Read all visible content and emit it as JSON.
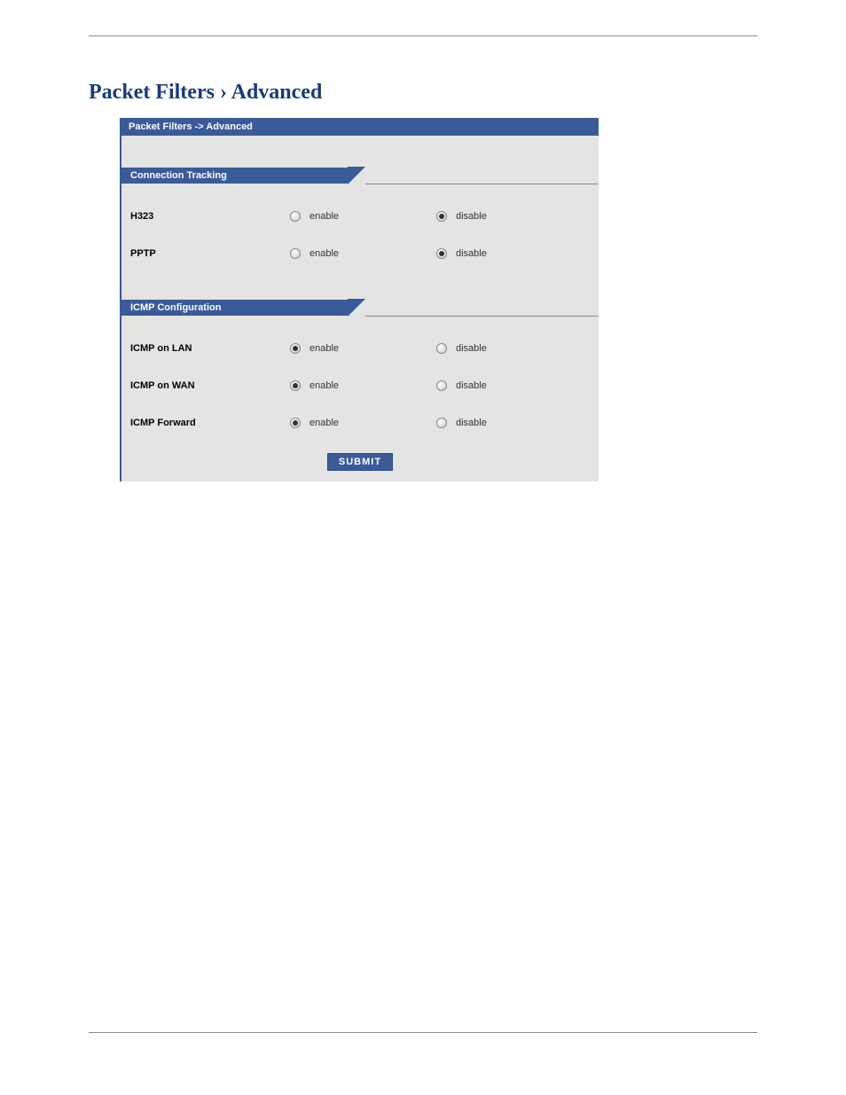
{
  "colors": {
    "primary": "#3a5a9a",
    "title": "#1a3a7a",
    "panel_bg": "#e4e4e4",
    "text": "#000000",
    "radio_label": "#333333",
    "rule": "#888888",
    "white": "#ffffff"
  },
  "page": {
    "title": "Packet Filters › Advanced"
  },
  "panel": {
    "breadcrumb": "Packet Filters  ->  Advanced",
    "sections": [
      {
        "header": "Connection Tracking",
        "rows": [
          {
            "label": "H323",
            "enable_label": "enable",
            "disable_label": "disable",
            "selected": "disable"
          },
          {
            "label": "PPTP",
            "enable_label": "enable",
            "disable_label": "disable",
            "selected": "disable"
          }
        ]
      },
      {
        "header": "ICMP Configuration",
        "rows": [
          {
            "label": "ICMP on LAN",
            "enable_label": "enable",
            "disable_label": "disable",
            "selected": "enable"
          },
          {
            "label": "ICMP on WAN",
            "enable_label": "enable",
            "disable_label": "disable",
            "selected": "enable"
          },
          {
            "label": "ICMP Forward",
            "enable_label": "enable",
            "disable_label": "disable",
            "selected": "enable"
          }
        ]
      }
    ],
    "submit_label": "SUBMIT"
  }
}
